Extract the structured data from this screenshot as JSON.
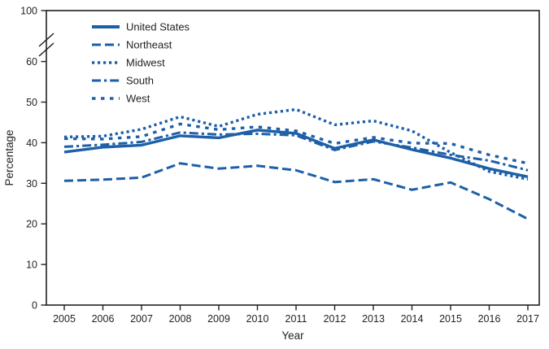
{
  "chart_data": {
    "type": "line",
    "title": "",
    "xlabel": "Year",
    "ylabel": "Percentage",
    "x": [
      2005,
      2006,
      2007,
      2008,
      2009,
      2010,
      2011,
      2012,
      2013,
      2014,
      2015,
      2016,
      2017
    ],
    "series": [
      {
        "name": "United States",
        "line_style": "solid",
        "values": [
          37.7,
          38.9,
          39.4,
          41.7,
          41.2,
          43.1,
          42.3,
          38.6,
          40.7,
          38.3,
          36.2,
          33.6,
          31.6
        ]
      },
      {
        "name": "Northeast",
        "line_style": "long-dash",
        "values": [
          30.6,
          30.9,
          31.4,
          34.9,
          33.6,
          34.3,
          33.2,
          30.3,
          31.0,
          28.4,
          30.2,
          26.1,
          21.2
        ]
      },
      {
        "name": "Midwest",
        "line_style": "dotted",
        "values": [
          41.4,
          41.6,
          43.3,
          46.4,
          44.0,
          47.0,
          48.2,
          44.4,
          45.4,
          42.9,
          37.6,
          32.9,
          31.0
        ]
      },
      {
        "name": "South",
        "line_style": "dash-dot",
        "values": [
          39.0,
          39.5,
          40.2,
          42.5,
          42.0,
          42.2,
          41.8,
          38.2,
          40.3,
          38.8,
          37.0,
          35.6,
          33.2
        ]
      },
      {
        "name": "West",
        "line_style": "short-dash",
        "values": [
          41.0,
          40.9,
          41.5,
          44.6,
          43.2,
          43.9,
          42.9,
          39.8,
          41.3,
          39.9,
          39.8,
          37.0,
          34.9
        ]
      }
    ],
    "ylim": [
      0,
      100
    ],
    "y_ticks": [
      0,
      10,
      20,
      30,
      40,
      50,
      60,
      100
    ],
    "y_axis_break_between": [
      60,
      100
    ],
    "x_tick_labels": [
      "2005",
      "2006",
      "2007",
      "2008",
      "2009",
      "2010",
      "2011",
      "2012",
      "2013",
      "2014",
      "2015",
      "2016",
      "2017"
    ],
    "grid": false,
    "legend_position": "upper-left-inside",
    "line_color": "#1d5fa8",
    "text_color": "#231f20"
  }
}
